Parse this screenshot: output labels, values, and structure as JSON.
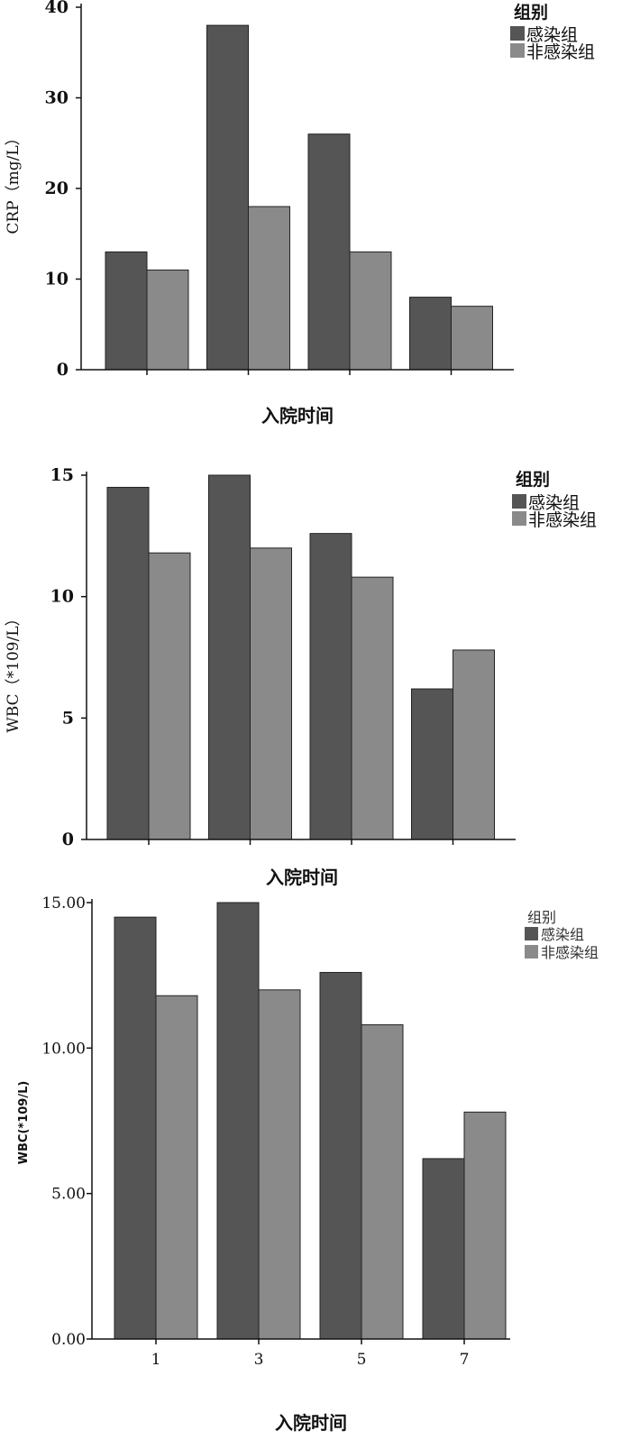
{
  "chart_data": [
    {
      "type": "bar",
      "categories": [
        "",
        "",
        "",
        ""
      ],
      "series": [
        {
          "name": "感染组",
          "values": [
            13,
            38,
            26,
            8
          ],
          "color": "#555555"
        },
        {
          "name": "非感染组",
          "values": [
            11,
            18,
            13,
            7
          ],
          "color": "#8a8a8a"
        }
      ],
      "xlabel": "入院时间",
      "ylabel": "CRP（mg/L）",
      "legend_title": "组别",
      "ylim": [
        0,
        40
      ],
      "yticks": [
        "0",
        "10",
        "20",
        "30",
        "40"
      ],
      "legend": "top-right",
      "grid": false
    },
    {
      "type": "bar",
      "categories": [
        "",
        "",
        "",
        ""
      ],
      "series": [
        {
          "name": "感染组",
          "values": [
            14.5,
            15.0,
            12.6,
            6.2
          ],
          "color": "#555555"
        },
        {
          "name": "非感染组",
          "values": [
            11.8,
            12.0,
            10.8,
            7.8
          ],
          "color": "#8a8a8a"
        }
      ],
      "xlabel": "入院时间",
      "ylabel": "WBC（*109/L）",
      "legend_title": "组别",
      "ylim": [
        0,
        15
      ],
      "yticks": [
        "0",
        "5",
        "10",
        "15"
      ],
      "legend": "top-right",
      "grid": false
    },
    {
      "type": "bar",
      "categories": [
        "1",
        "3",
        "5",
        "7"
      ],
      "series": [
        {
          "name": "感染组",
          "values": [
            14.5,
            15.0,
            12.6,
            6.2
          ],
          "color": "#555555"
        },
        {
          "name": "非感染组",
          "values": [
            11.8,
            12.0,
            10.8,
            7.8
          ],
          "color": "#8a8a8a"
        }
      ],
      "xlabel": "入院时间",
      "ylabel": "WBC(*109/L)",
      "legend_title": "组别",
      "ylim": [
        0,
        15
      ],
      "yticks": [
        "0.00",
        "5.00",
        "10.00",
        "15.00"
      ],
      "legend": "top-right",
      "grid": false
    }
  ]
}
